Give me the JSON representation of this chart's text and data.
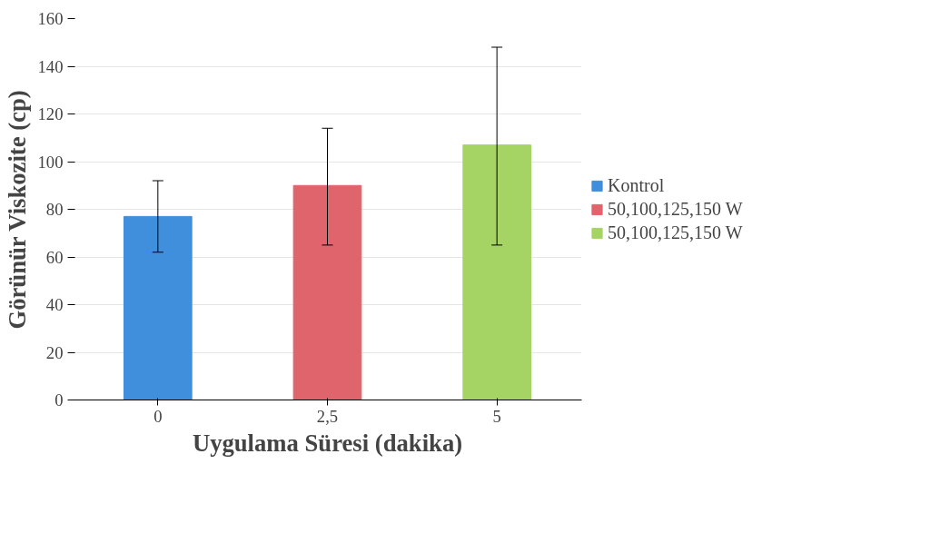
{
  "chart_data": {
    "type": "bar",
    "xlabel": "Uygulama Süresi (dakika)",
    "ylabel": "Görünür Viskozite (cp)",
    "categories": [
      "0",
      "2,5",
      "5"
    ],
    "series": [
      {
        "name": "Kontrol",
        "color": "#3f8fdc",
        "values": [
          77,
          null,
          null
        ],
        "errors": [
          [
            62,
            92
          ],
          null,
          null
        ]
      },
      {
        "name": "50,100,125,150 W",
        "color": "#e0646c",
        "values": [
          null,
          90,
          null
        ],
        "errors": [
          null,
          [
            65,
            114
          ],
          null
        ]
      },
      {
        "name": "50,100,125,150 W",
        "color": "#a6d464",
        "values": [
          null,
          null,
          107
        ],
        "errors": [
          null,
          null,
          [
            65,
            148
          ]
        ]
      }
    ],
    "ylim": [
      0,
      160
    ],
    "yticks": [
      0,
      20,
      40,
      60,
      80,
      100,
      120,
      140,
      160
    ],
    "grid": "y",
    "legend": "right"
  }
}
